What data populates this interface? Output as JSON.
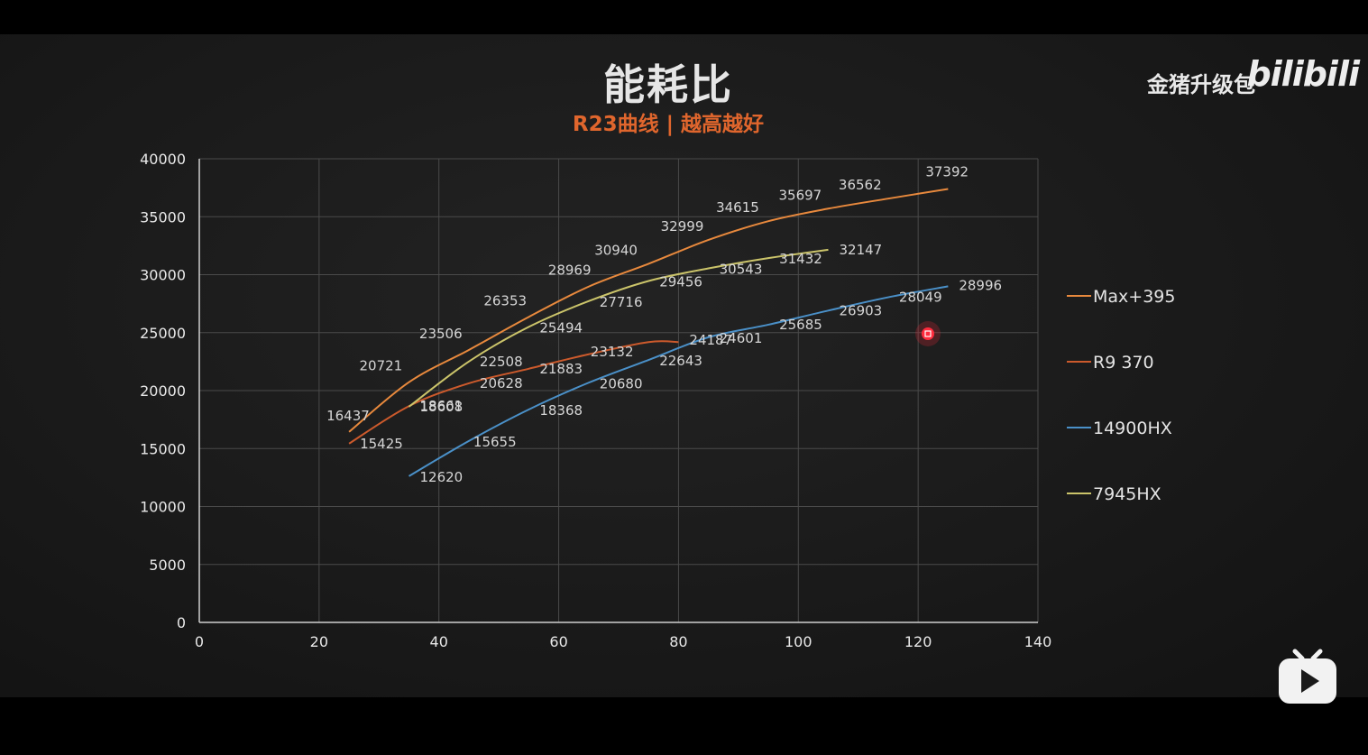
{
  "header": {
    "title": "能耗比",
    "subtitle": "R23曲线 | 越高越好"
  },
  "watermark": {
    "channel": "金猪升级包",
    "platform": "bilibili"
  },
  "icons": {
    "player_logo": "bilibili-tv-icon"
  },
  "chart_data": {
    "type": "line",
    "title": "能耗比",
    "subtitle": "R23曲线 | 越高越好",
    "xlabel": "",
    "ylabel": "",
    "xlim": [
      0,
      140
    ],
    "ylim": [
      0,
      40000
    ],
    "xticks": [
      0,
      20,
      40,
      60,
      80,
      100,
      120,
      140
    ],
    "yticks": [
      0,
      5000,
      10000,
      15000,
      20000,
      25000,
      30000,
      35000,
      40000
    ],
    "grid": true,
    "legend_position": "right",
    "series": [
      {
        "name": "Max+395",
        "color": "#e8893d",
        "x": [
          25,
          35,
          45,
          55,
          65,
          75,
          85,
          95,
          105,
          115,
          125
        ],
        "values": [
          16437,
          20721,
          23506,
          26353,
          28969,
          30940,
          32999,
          34615,
          35697,
          36562,
          37392
        ]
      },
      {
        "name": "R9 370",
        "color": "#cc5a2c",
        "x": [
          25,
          35,
          45,
          55,
          65,
          75,
          80
        ],
        "values": [
          15425,
          18661,
          20628,
          21883,
          23132,
          24187,
          24187
        ]
      },
      {
        "name": "14900HX",
        "color": "#4a90c8",
        "x": [
          35,
          45,
          55,
          65,
          75,
          85,
          95,
          105,
          115,
          125
        ],
        "values": [
          12620,
          15655,
          18368,
          20680,
          22643,
          24601,
          25685,
          26903,
          28049,
          28996
        ]
      },
      {
        "name": "7945HX",
        "color": "#cbc46a",
        "x": [
          35,
          45,
          55,
          65,
          75,
          85,
          95,
          105
        ],
        "values": [
          18608,
          22508,
          25494,
          27716,
          29456,
          30543,
          31432,
          32147
        ]
      }
    ],
    "data_labels": [
      {
        "text": "16437",
        "x": 25,
        "y": 16437,
        "dx": -25,
        "dy": -13
      },
      {
        "text": "20721",
        "x": 35,
        "y": 20721,
        "dx": -55,
        "dy": -13
      },
      {
        "text": "23506",
        "x": 45,
        "y": 23506,
        "dx": -55,
        "dy": -13
      },
      {
        "text": "26353",
        "x": 55,
        "y": 26353,
        "dx": -50,
        "dy": -13
      },
      {
        "text": "28969",
        "x": 65,
        "y": 28969,
        "dx": -45,
        "dy": -13
      },
      {
        "text": "30940",
        "x": 75,
        "y": 30940,
        "dx": -60,
        "dy": -10
      },
      {
        "text": "32999",
        "x": 85,
        "y": 32999,
        "dx": -53,
        "dy": -10
      },
      {
        "text": "34615",
        "x": 95,
        "y": 34615,
        "dx": -58,
        "dy": -10
      },
      {
        "text": "35697",
        "x": 105,
        "y": 35697,
        "dx": -55,
        "dy": -10
      },
      {
        "text": "36562",
        "x": 115,
        "y": 36562,
        "dx": -55,
        "dy": -10
      },
      {
        "text": "37392",
        "x": 125,
        "y": 37392,
        "dx": -25,
        "dy": -14
      },
      {
        "text": "15425",
        "x": 25,
        "y": 15425,
        "dx": 12,
        "dy": 5
      },
      {
        "text": "18661",
        "x": 35,
        "y": 18661,
        "dx": 12,
        "dy": 5
      },
      {
        "text": "20628",
        "x": 45,
        "y": 20628,
        "dx": 12,
        "dy": 5
      },
      {
        "text": "21883",
        "x": 55,
        "y": 21883,
        "dx": 12,
        "dy": 5
      },
      {
        "text": "23132",
        "x": 65,
        "y": 23132,
        "dx": 2,
        "dy": 2
      },
      {
        "text": "24187",
        "x": 80,
        "y": 24187,
        "dx": 12,
        "dy": 3
      },
      {
        "text": "12620",
        "x": 35,
        "y": 12620,
        "dx": 12,
        "dy": 6
      },
      {
        "text": "15655",
        "x": 45,
        "y": 15655,
        "dx": 5,
        "dy": 6
      },
      {
        "text": "18368",
        "x": 55,
        "y": 18368,
        "dx": 12,
        "dy": 6
      },
      {
        "text": "20680",
        "x": 65,
        "y": 20680,
        "dx": 12,
        "dy": 6
      },
      {
        "text": "22643",
        "x": 75,
        "y": 22643,
        "dx": 12,
        "dy": 6
      },
      {
        "text": "24601",
        "x": 85,
        "y": 24601,
        "dx": 12,
        "dy": 6
      },
      {
        "text": "25685",
        "x": 95,
        "y": 25685,
        "dx": 12,
        "dy": 5
      },
      {
        "text": "26903",
        "x": 105,
        "y": 26903,
        "dx": 12,
        "dy": 5
      },
      {
        "text": "28049",
        "x": 115,
        "y": 28049,
        "dx": 12,
        "dy": 5
      },
      {
        "text": "28996",
        "x": 125,
        "y": 28996,
        "dx": 12,
        "dy": 4
      },
      {
        "text": "18608",
        "x": 35,
        "y": 18608,
        "dx": 12,
        "dy": 5
      },
      {
        "text": "22508",
        "x": 45,
        "y": 22508,
        "dx": 12,
        "dy": 5
      },
      {
        "text": "25494",
        "x": 55,
        "y": 25494,
        "dx": 12,
        "dy": 6
      },
      {
        "text": "27716",
        "x": 65,
        "y": 27716,
        "dx": 12,
        "dy": 6
      },
      {
        "text": "29456",
        "x": 75,
        "y": 29456,
        "dx": 12,
        "dy": 6
      },
      {
        "text": "30543",
        "x": 85,
        "y": 30543,
        "dx": 12,
        "dy": 6
      },
      {
        "text": "31432",
        "x": 95,
        "y": 31432,
        "dx": 12,
        "dy": 6
      },
      {
        "text": "32147",
        "x": 105,
        "y": 32147,
        "dx": 12,
        "dy": 5
      }
    ]
  }
}
